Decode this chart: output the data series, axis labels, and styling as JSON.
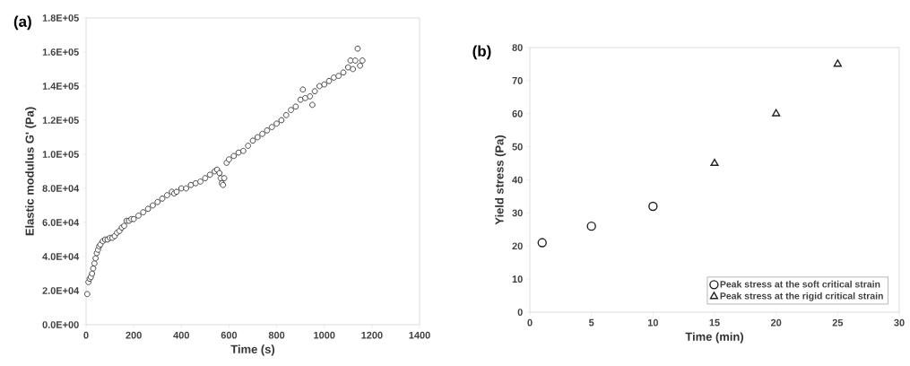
{
  "chart_data": [
    {
      "type": "scatter",
      "title": "(a)",
      "xlabel": "Time (s)",
      "ylabel": "Elastic modulus G' (Pa)",
      "xlim": [
        0,
        1400
      ],
      "xticks": [
        0,
        200,
        400,
        600,
        800,
        1000,
        1200,
        1400
      ],
      "ylim": [
        0,
        180000
      ],
      "yticks": [
        {
          "value": 0,
          "label": "0.0E+00"
        },
        {
          "value": 20000,
          "label": "2.0E+04"
        },
        {
          "value": 40000,
          "label": "4.0E+04"
        },
        {
          "value": 60000,
          "label": "6.0E+04"
        },
        {
          "value": 80000,
          "label": "8.0E+04"
        },
        {
          "value": 100000,
          "label": "1.0E+05"
        },
        {
          "value": 120000,
          "label": "1.2E+05"
        },
        {
          "value": 140000,
          "label": "1.4E+05"
        },
        {
          "value": 160000,
          "label": "1.6E+05"
        },
        {
          "value": 180000,
          "label": "1.8E+05"
        }
      ],
      "legend": false,
      "series": [
        {
          "color": "#333333",
          "marker": "circle",
          "x": [
            5,
            10,
            15,
            20,
            25,
            30,
            35,
            40,
            45,
            50,
            55,
            60,
            70,
            80,
            90,
            100,
            110,
            120,
            130,
            140,
            150,
            160,
            170,
            180,
            190,
            200,
            220,
            240,
            260,
            280,
            300,
            320,
            340,
            360,
            370,
            380,
            400,
            420,
            440,
            460,
            480,
            500,
            520,
            540,
            550,
            560,
            565,
            570,
            575,
            580,
            590,
            600,
            620,
            640,
            660,
            680,
            700,
            720,
            740,
            760,
            780,
            800,
            820,
            840,
            860,
            880,
            900,
            910,
            920,
            940,
            950,
            960,
            980,
            1000,
            1020,
            1040,
            1060,
            1080,
            1100,
            1110,
            1120,
            1130,
            1140,
            1150,
            1160
          ],
          "values": [
            18000,
            25000,
            27000,
            28000,
            30000,
            33000,
            36000,
            39000,
            42000,
            44000,
            46000,
            47000,
            49000,
            50000,
            50000,
            51000,
            51000,
            52000,
            54000,
            55000,
            57000,
            58000,
            61000,
            61000,
            62000,
            62000,
            64000,
            66000,
            68000,
            70000,
            72000,
            74000,
            76000,
            78000,
            77000,
            78000,
            80000,
            80000,
            82000,
            83000,
            84000,
            86000,
            88000,
            90000,
            91000,
            89000,
            86000,
            83000,
            82000,
            86000,
            95000,
            97000,
            99000,
            101000,
            102000,
            105000,
            108000,
            110000,
            112000,
            114000,
            116000,
            118000,
            120000,
            123000,
            126000,
            128000,
            132000,
            138000,
            133000,
            134000,
            129000,
            137000,
            140000,
            141000,
            143000,
            145000,
            146000,
            148000,
            151000,
            155000,
            150000,
            155000,
            162000,
            152000,
            155000
          ]
        }
      ]
    },
    {
      "type": "scatter",
      "title": "(b)",
      "xlabel": "Time (min)",
      "ylabel": "Yield stress (Pa)",
      "xlim": [
        0,
        30
      ],
      "xticks": [
        0,
        5,
        10,
        15,
        20,
        25,
        30
      ],
      "ylim": [
        0,
        80
      ],
      "yticks": [
        0,
        10,
        20,
        30,
        40,
        50,
        60,
        70,
        80
      ],
      "legend": "bottom right",
      "series": [
        {
          "name": "Peak stress at the soft critical strain",
          "color": "#222222",
          "marker": "circle",
          "x": [
            1,
            5,
            10
          ],
          "values": [
            21,
            26,
            32
          ]
        },
        {
          "name": "Peak stress at the rigid critical strain",
          "color": "#222222",
          "marker": "triangle",
          "x": [
            15,
            20,
            25
          ],
          "values": [
            45,
            60,
            75
          ]
        }
      ]
    }
  ]
}
